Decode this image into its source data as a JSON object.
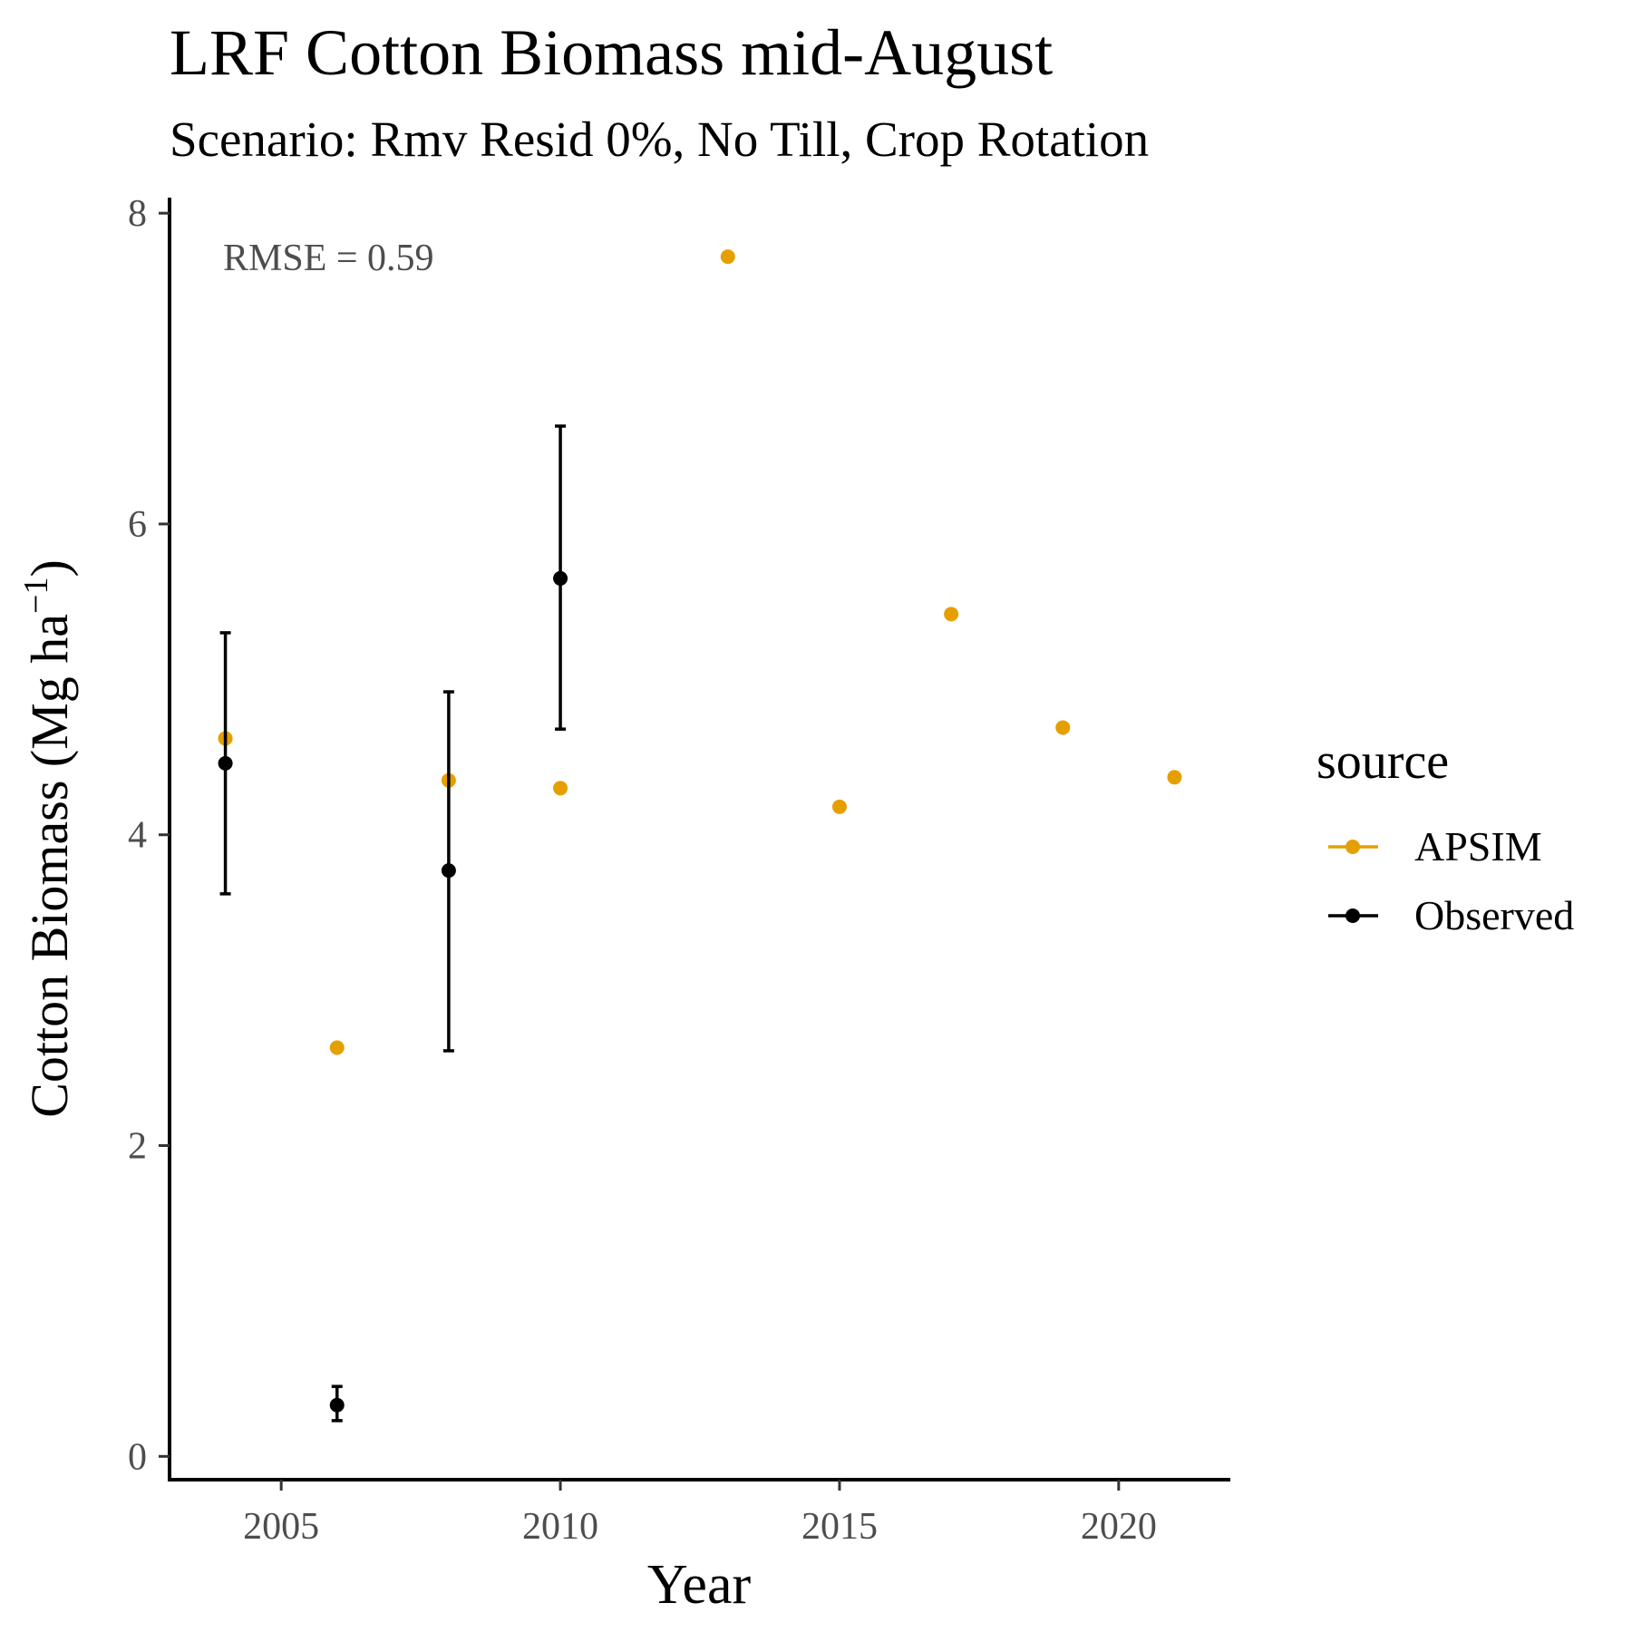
{
  "chart_data": {
    "type": "scatter",
    "title": "LRF Cotton Biomass mid-August",
    "subtitle": "Scenario: Rmv Resid 0%, No Till, Crop Rotation",
    "xlabel": "Year",
    "ylabel": "Cotton Biomass (Mg ha",
    "ylabel_sup": "−1",
    "ylabel_close": ")",
    "annotation": "RMSE = 0.59",
    "xlim": [
      2003.0,
      2022.0
    ],
    "ylim": [
      -0.15,
      8.1
    ],
    "x_ticks": [
      2005,
      2010,
      2015,
      2020
    ],
    "x_tick_labels": [
      "2005",
      "2010",
      "2015",
      "2020"
    ],
    "y_ticks": [
      0,
      2,
      4,
      6,
      8
    ],
    "y_tick_labels": [
      "0",
      "2",
      "4",
      "6",
      "8"
    ],
    "grid": false,
    "legend": {
      "title": "source",
      "position": "right",
      "entries": [
        {
          "label": "APSIM",
          "color": "#E69F00"
        },
        {
          "label": "Observed",
          "color": "#000000"
        }
      ]
    },
    "series": [
      {
        "name": "APSIM",
        "color": "#E69F00",
        "points": [
          {
            "x": 2004,
            "y": 4.62
          },
          {
            "x": 2006,
            "y": 2.63
          },
          {
            "x": 2008,
            "y": 4.35
          },
          {
            "x": 2010,
            "y": 4.3
          },
          {
            "x": 2013,
            "y": 7.72
          },
          {
            "x": 2015,
            "y": 4.18
          },
          {
            "x": 2017,
            "y": 5.42
          },
          {
            "x": 2019,
            "y": 4.69
          },
          {
            "x": 2021,
            "y": 4.37
          }
        ]
      },
      {
        "name": "Observed",
        "color": "#000000",
        "points": [
          {
            "x": 2004,
            "y": 4.46,
            "ymin": 3.62,
            "ymax": 5.3
          },
          {
            "x": 2006,
            "y": 0.33,
            "ymin": 0.23,
            "ymax": 0.45
          },
          {
            "x": 2008,
            "y": 3.77,
            "ymin": 2.61,
            "ymax": 4.92
          },
          {
            "x": 2010,
            "y": 5.65,
            "ymin": 4.68,
            "ymax": 6.63
          }
        ]
      }
    ]
  }
}
